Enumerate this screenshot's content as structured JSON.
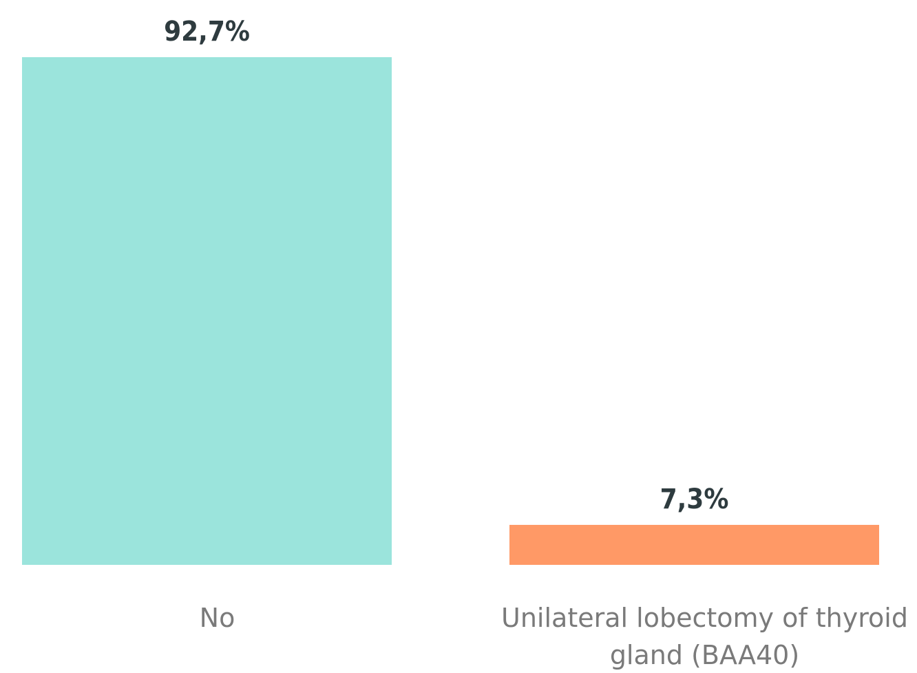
{
  "chart_data": {
    "type": "bar",
    "categories": [
      "No",
      "Unilateral lobectomy of thyroid gland (BAA40)"
    ],
    "category_lines": [
      [
        "No"
      ],
      [
        "Unilateral lobectomy of thyroid",
        "gland (BAA40)"
      ]
    ],
    "values": [
      92.7,
      7.3
    ],
    "value_labels": [
      "92,7%",
      "7,3%"
    ],
    "colors": [
      "#9be4dc",
      "#ff9966"
    ],
    "ylim": [
      0,
      92.7
    ],
    "grid": false,
    "legend": "none"
  }
}
